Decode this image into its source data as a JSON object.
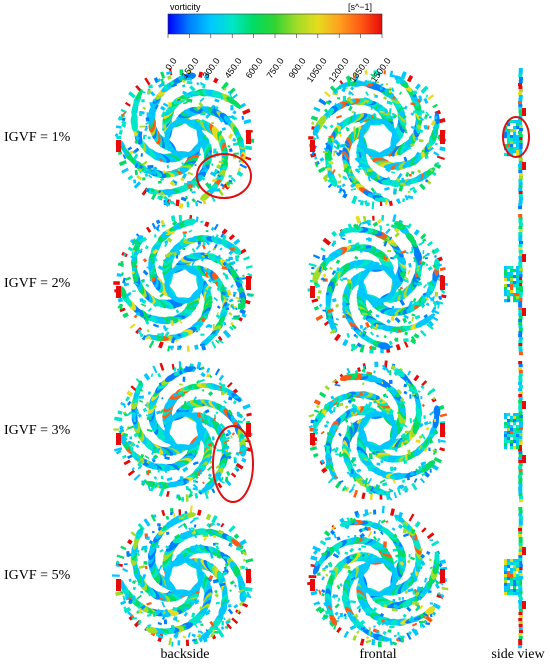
{
  "colorbar": {
    "title": "vorticity",
    "unit": "[s^−1]",
    "min": 0,
    "max": 1500,
    "ticks": [
      "0.0",
      "150.0",
      "300.0",
      "450.0",
      "600.0",
      "750.0",
      "900.0",
      "1050.0",
      "1200.0",
      "1350.0",
      "1500.0"
    ],
    "colors": [
      "#0000ff",
      "#0080ff",
      "#00c8ff",
      "#00e6c8",
      "#00dc64",
      "#32d232",
      "#a0dc28",
      "#e6dc1e",
      "#ffa01e",
      "#ff5a14",
      "#e60a0a"
    ]
  },
  "rows": [
    {
      "label": "IGVF = 1%",
      "highlight_backside": true,
      "highlight_side": true
    },
    {
      "label": "IGVF = 2%",
      "highlight_backside": false,
      "highlight_side": false
    },
    {
      "label": "IGVF = 3%",
      "highlight_backside": true,
      "highlight_side": false
    },
    {
      "label": "IGVF = 5%",
      "highlight_backside": false,
      "highlight_side": false
    }
  ],
  "columns": [
    "backside",
    "frontal",
    "side view"
  ],
  "highlight_color": "#dd1111"
}
